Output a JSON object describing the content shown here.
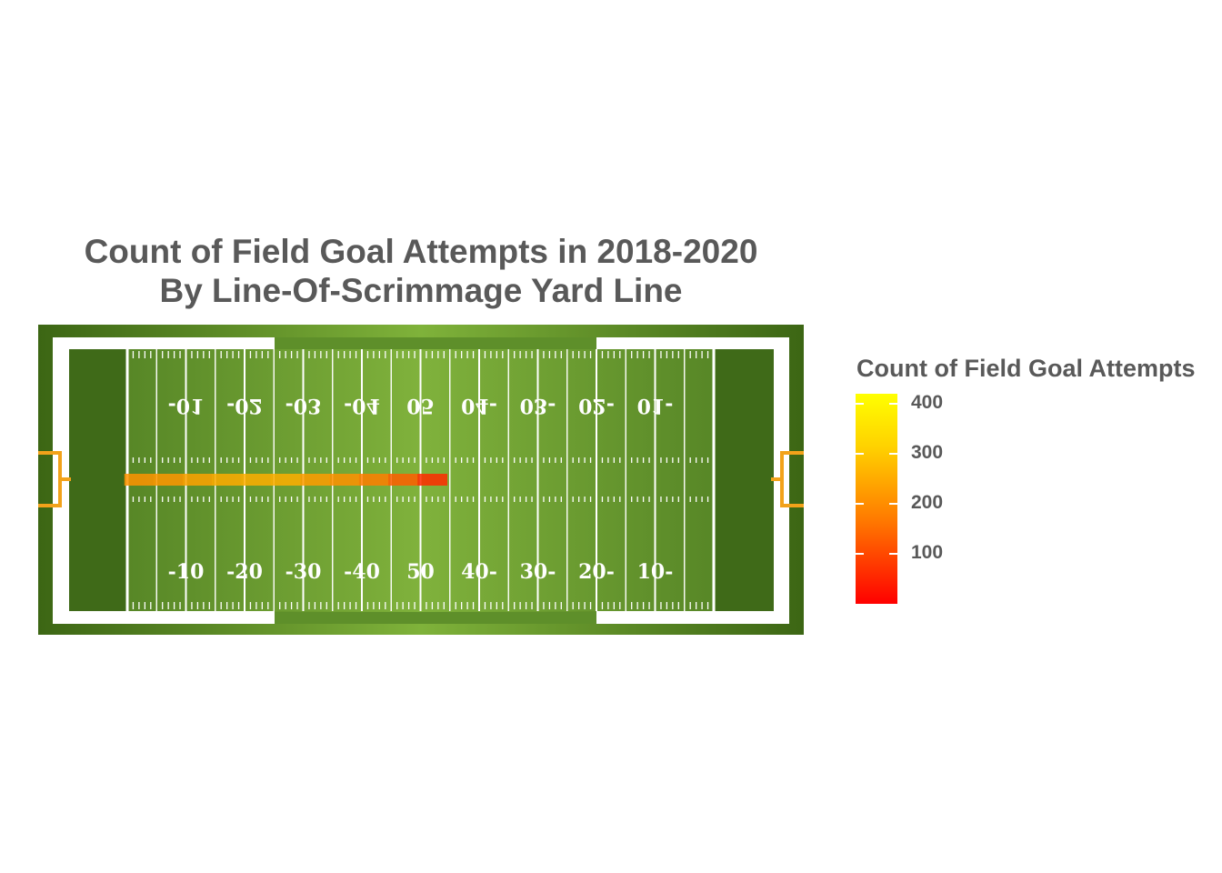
{
  "chart_data": {
    "type": "heatmap",
    "title_line1": "Count of Field Goal Attempts in 2018-2020",
    "title_line2": "By Line-Of-Scrimmage Yard Line",
    "x_field_labels_bottom": [
      "-10",
      "-20",
      "-30",
      "-40",
      "50",
      "40-",
      "30-",
      "20-",
      "10-"
    ],
    "x_field_labels_top": [
      "-01",
      "-02",
      "-03",
      "-04",
      "05",
      "04-",
      "03-",
      "02-",
      "01-"
    ],
    "cells": [
      {
        "yard_line": 2,
        "count": 210
      },
      {
        "yard_line": 7,
        "count": 215
      },
      {
        "yard_line": 12,
        "count": 235
      },
      {
        "yard_line": 17,
        "count": 250
      },
      {
        "yard_line": 22,
        "count": 255
      },
      {
        "yard_line": 27,
        "count": 255
      },
      {
        "yard_line": 32,
        "count": 225
      },
      {
        "yard_line": 37,
        "count": 205
      },
      {
        "yard_line": 42,
        "count": 175
      },
      {
        "yard_line": 47,
        "count": 130
      },
      {
        "yard_line": 52,
        "count": 60
      }
    ],
    "legend": {
      "title": "Count of Field Goal Attempts",
      "ticks": [
        "100",
        "200",
        "300",
        "400"
      ],
      "range": [
        1,
        420
      ],
      "colors": [
        "#ff0000",
        "#ff7a00",
        "#ffd200",
        "#ffff00"
      ]
    }
  }
}
